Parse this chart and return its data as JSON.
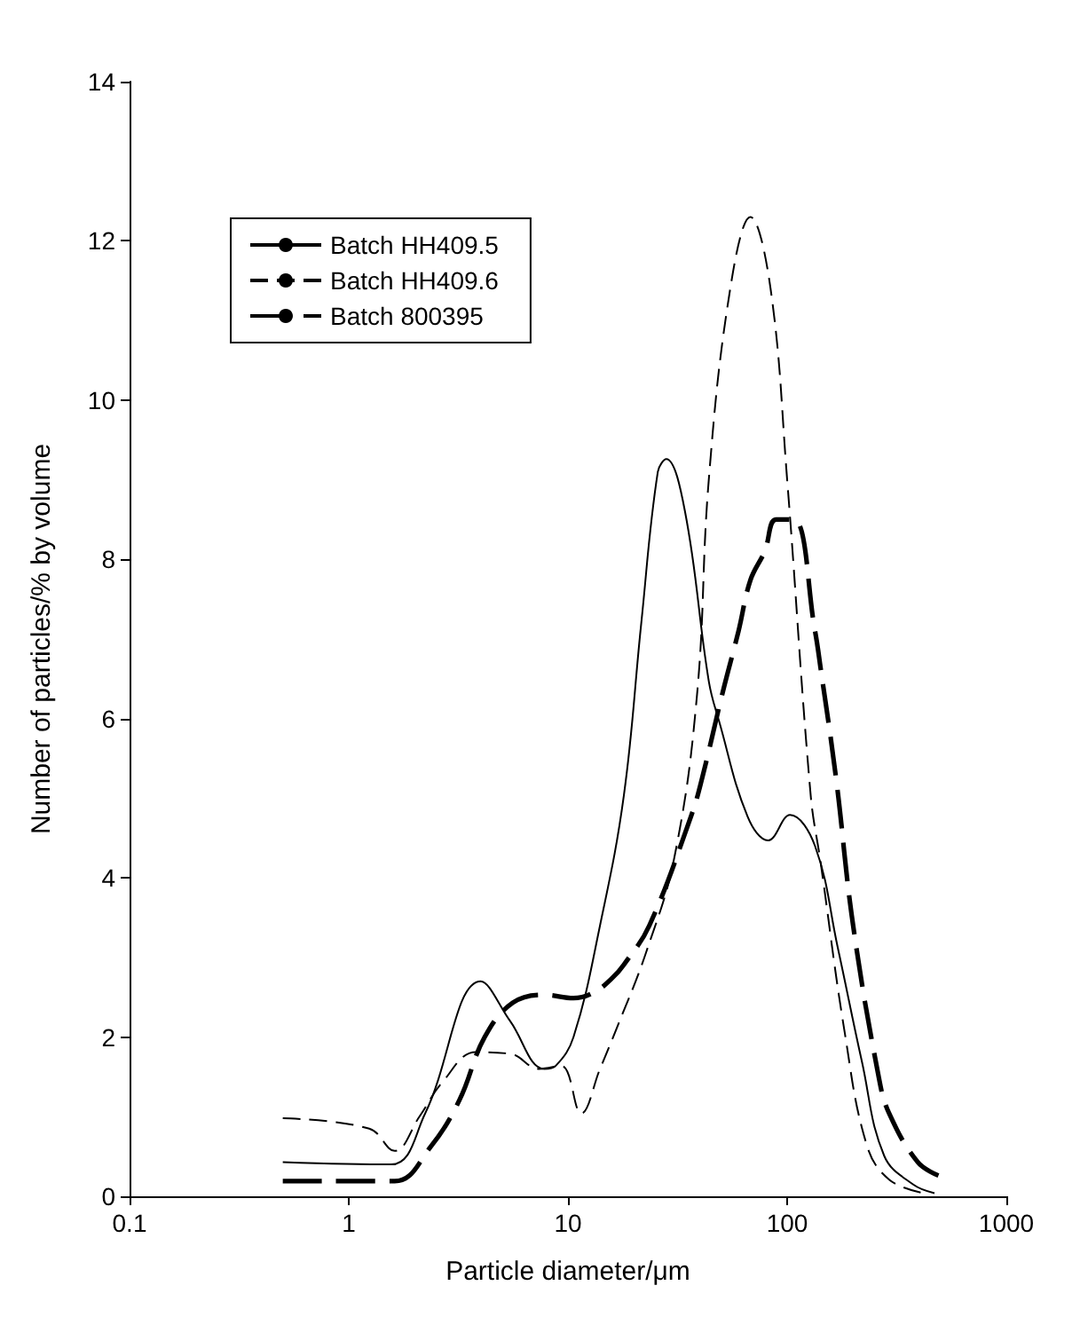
{
  "chart_data": {
    "type": "line",
    "xlabel": "Particle diameter/μm",
    "ylabel": "Number of particles/% by volume",
    "log": "x",
    "xlim": [
      0.1,
      1000
    ],
    "xticks": [
      0.1,
      1,
      10,
      100,
      1000
    ],
    "ylim": [
      0,
      14
    ],
    "yticks": [
      0,
      2,
      4,
      6,
      8,
      10,
      12,
      14
    ],
    "grid": false,
    "legend": "top left",
    "marker": "none",
    "series": [
      {
        "name": "Batch HH409.5",
        "color": "#000000",
        "line_style": "solid",
        "x": [
          0.5,
          1.56,
          2.23,
          4.0,
          5.45,
          7.8,
          8.8,
          10.6,
          14,
          18,
          21.6,
          25.7,
          28.1,
          34.2,
          43.9,
          49,
          66,
          82,
          103,
          134,
          170,
          219,
          277,
          375,
          470
        ],
        "values": [
          0.43,
          0.4,
          1.04,
          2.7,
          2.2,
          1.6,
          1.64,
          2.0,
          3.4,
          5.04,
          7.2,
          9.1,
          9.26,
          8.6,
          6.47,
          5.96,
          4.77,
          4.47,
          4.79,
          4.4,
          3.13,
          1.7,
          0.51,
          0.15,
          0.04
        ]
      },
      {
        "name": "Batch HH409.6",
        "color": "#000000",
        "line_style": "dashed",
        "x": [
          0.5,
          1.24,
          1.62,
          2.1,
          2.67,
          3.8,
          5.45,
          7.4,
          9.3,
          11.5,
          14,
          16.8,
          22.7,
          30.6,
          38.8,
          43.9,
          55,
          68,
          84,
          100,
          128,
          142,
          183,
          231,
          292,
          417
        ],
        "values": [
          0.98,
          0.85,
          0.57,
          1.0,
          1.43,
          1.81,
          1.79,
          1.6,
          1.64,
          1.04,
          1.6,
          2.13,
          3.06,
          4.26,
          6.3,
          9.0,
          11.4,
          12.3,
          11.4,
          9.0,
          5.04,
          4.2,
          2.06,
          0.64,
          0.21,
          0.04
        ]
      },
      {
        "name": "Batch 800395",
        "color": "#000000",
        "line_style": "dashed",
        "x": [
          0.5,
          1.62,
          2.36,
          3.2,
          4.17,
          5.6,
          7.8,
          10.6,
          13.3,
          15.9,
          18,
          23.5,
          36.6,
          41,
          50.7,
          60,
          68,
          79,
          89,
          107,
          134,
          142,
          167,
          200,
          262,
          292,
          394,
          490
        ],
        "values": [
          0.19,
          0.19,
          0.62,
          1.21,
          2.0,
          2.43,
          2.53,
          2.49,
          2.57,
          2.74,
          2.91,
          3.4,
          4.79,
          5.26,
          6.32,
          7.1,
          7.74,
          8.1,
          8.5,
          8.5,
          7.1,
          6.64,
          5.26,
          3.4,
          1.49,
          1.04,
          0.43,
          0.26
        ]
      }
    ]
  }
}
